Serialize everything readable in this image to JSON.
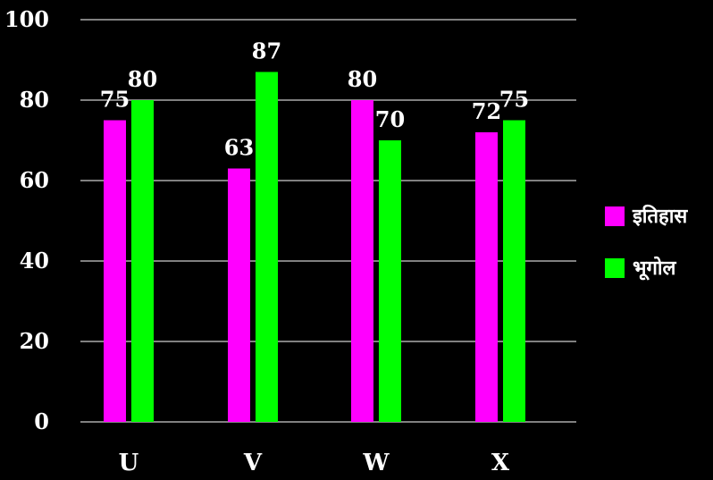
{
  "chart_data": {
    "type": "bar",
    "categories": [
      "U",
      "V",
      "W",
      "X"
    ],
    "series": [
      {
        "name": "इतिहास",
        "color": "#ff00ff",
        "values": [
          75,
          63,
          80,
          72
        ]
      },
      {
        "name": "भूगोल",
        "color": "#00ff00",
        "values": [
          80,
          87,
          70,
          75
        ]
      }
    ],
    "ylim": [
      0,
      100
    ],
    "yticks": [
      0,
      20,
      40,
      60,
      80,
      100
    ],
    "grid": true,
    "legend": "right",
    "background": "#000000",
    "text_color": "#ffffff",
    "grid_color": "#ffffff"
  }
}
